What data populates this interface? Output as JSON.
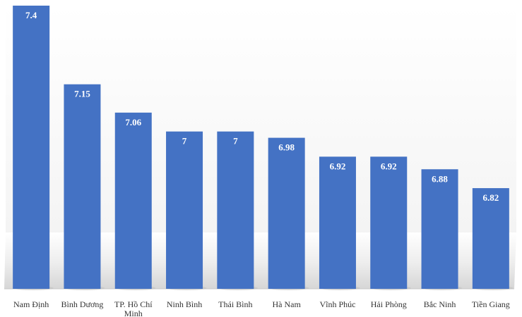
{
  "chart_data": {
    "type": "bar",
    "categories": [
      "Nam Định",
      "Bình Dương",
      "TP. Hồ Chí Minh",
      "Ninh Bình",
      "Thái Bình",
      "Hà Nam",
      "Vĩnh Phúc",
      "Hải Phòng",
      "Bắc Ninh",
      "Tiền Giang"
    ],
    "values": [
      7.4,
      7.15,
      7.06,
      7,
      7,
      6.98,
      6.92,
      6.92,
      6.88,
      6.82
    ],
    "value_labels": [
      "7.4",
      "7.15",
      "7.06",
      "7",
      "7",
      "6.98",
      "6.92",
      "6.92",
      "6.88",
      "6.82"
    ],
    "title": "",
    "xlabel": "",
    "ylabel": "",
    "ylim": [
      6.5,
      7.4
    ],
    "grid": false,
    "legend": "none",
    "bar_color": "#4472c4",
    "value_label_color": "#ffffff",
    "background_color": "#ffffff"
  }
}
